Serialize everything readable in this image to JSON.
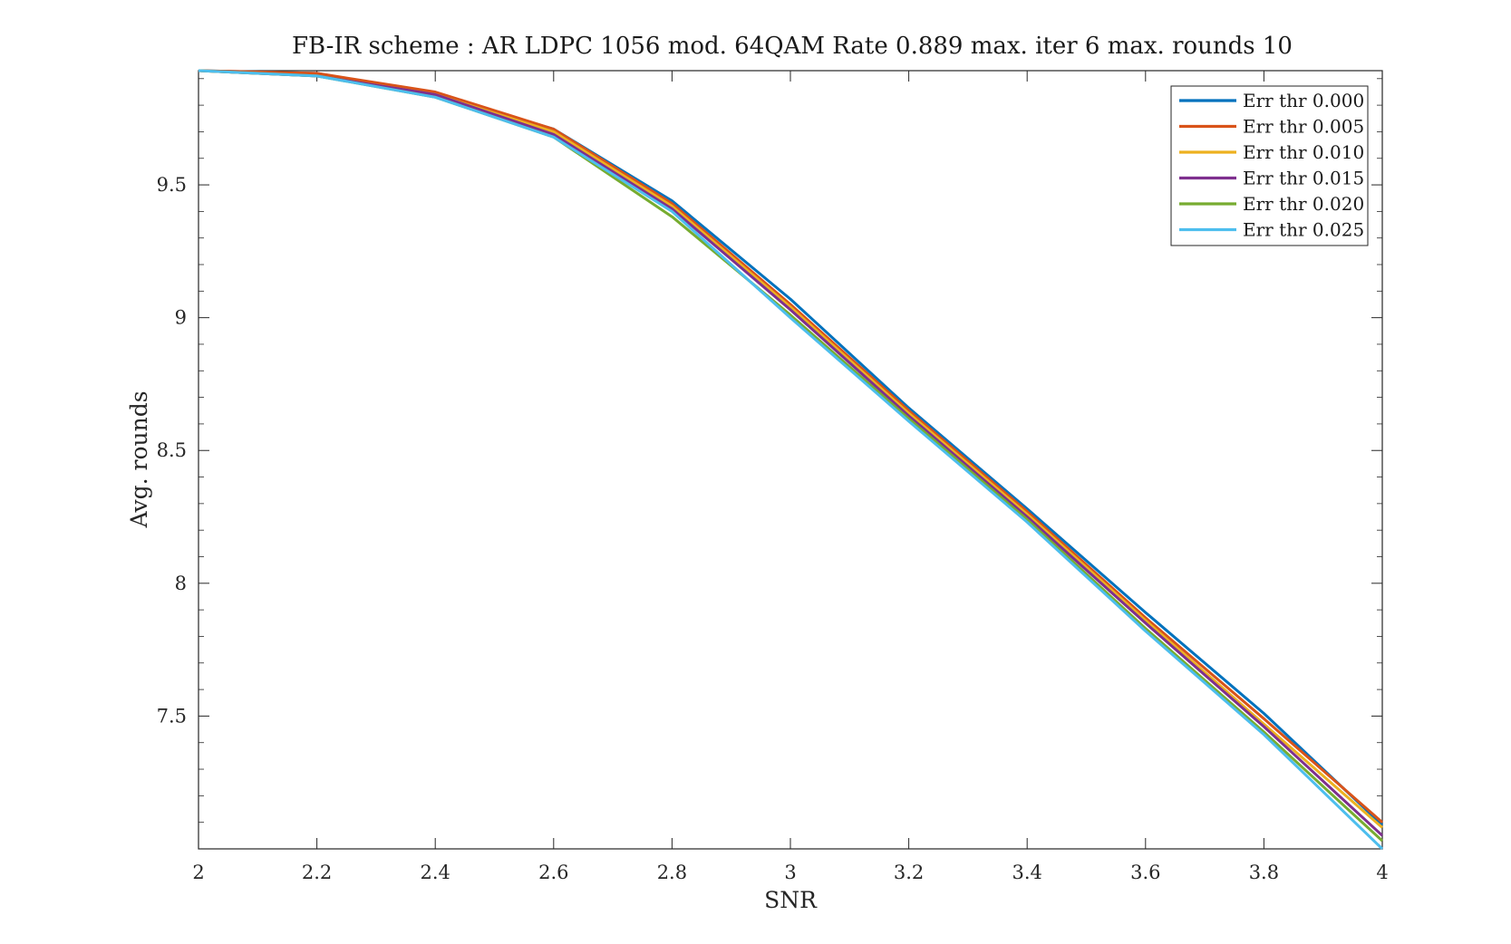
{
  "chart_data": {
    "type": "line",
    "title": "FB-IR scheme : AR LDPC 1056 mod. 64QAM Rate 0.889 max. iter 6 max. rounds 10",
    "xlabel": "SNR",
    "ylabel": "Avg. rounds",
    "xlim": [
      2,
      4
    ],
    "ylim": [
      7.0,
      9.93
    ],
    "xticks": [
      2,
      2.2,
      2.4,
      2.6,
      2.8,
      3,
      3.2,
      3.4,
      3.6,
      3.8,
      4
    ],
    "xtick_labels": [
      "2",
      "2.2",
      "2.4",
      "2.6",
      "2.8",
      "3",
      "3.2",
      "3.4",
      "3.6",
      "3.8",
      "4"
    ],
    "yticks": [
      7.5,
      8,
      8.5,
      9,
      9.5
    ],
    "ytick_labels": [
      "7.5",
      "8",
      "8.5",
      "9",
      "9.5"
    ],
    "grid": false,
    "legend_position": "top-right",
    "x": [
      2,
      2.2,
      2.4,
      2.6,
      2.8,
      3,
      3.2,
      3.4,
      3.6,
      3.8,
      4
    ],
    "series": [
      {
        "name": "Err thr 0.000",
        "color": "#0072BD",
        "values": [
          9.93,
          9.92,
          9.84,
          9.71,
          9.44,
          9.07,
          8.66,
          8.28,
          7.89,
          7.51,
          7.09
        ]
      },
      {
        "name": "Err thr 0.005",
        "color": "#D95319",
        "values": [
          9.93,
          9.92,
          9.85,
          9.71,
          9.43,
          9.05,
          8.65,
          8.27,
          7.87,
          7.49,
          7.1
        ]
      },
      {
        "name": "Err thr 0.010",
        "color": "#EDB120",
        "values": [
          9.93,
          9.91,
          9.84,
          9.7,
          9.42,
          9.04,
          8.64,
          8.26,
          7.86,
          7.47,
          7.08
        ]
      },
      {
        "name": "Err thr 0.015",
        "color": "#7E2F8E",
        "values": [
          9.93,
          9.91,
          9.84,
          9.69,
          9.41,
          9.03,
          8.63,
          8.25,
          7.85,
          7.46,
          7.05
        ]
      },
      {
        "name": "Err thr 0.020",
        "color": "#77AC30",
        "values": [
          9.93,
          9.91,
          9.83,
          9.68,
          9.38,
          9.01,
          8.62,
          8.24,
          7.83,
          7.44,
          7.03
        ]
      },
      {
        "name": "Err thr 0.025",
        "color": "#4DBEEE",
        "values": [
          9.93,
          9.91,
          9.83,
          9.68,
          9.4,
          9.0,
          8.61,
          8.23,
          7.82,
          7.43,
          7.0
        ]
      }
    ]
  }
}
